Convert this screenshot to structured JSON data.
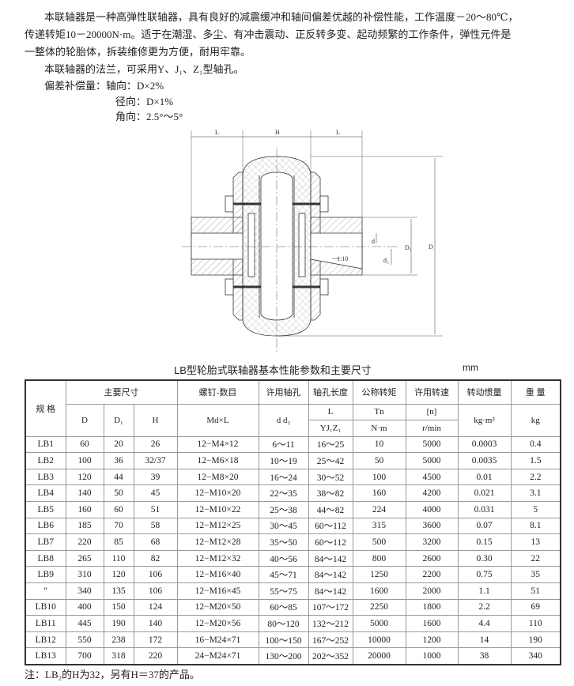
{
  "intro": {
    "line1": "本联轴器是一种高弹性联轴器，具有良好的减震缓冲和轴间偏差优越的补偿性能，工作温度－20～80℃，",
    "line2": "传递转矩10－20000N·m。适于在潮湿、多尘、有冲击震动、正反转多变、起动频繁的工作条件，弹性元件是",
    "line3": "一整体的轮胎体，拆装维修更为方便，耐用牢靠。",
    "line4": "本联轴器的法兰，可采用Y、J₁、Z₁型轴孔。",
    "line5": "偏差补偿量：轴向：D×2%",
    "line6": "径向：D×1%",
    "line7": "角向：2.5°～5°"
  },
  "diagram": {
    "L_left": "L",
    "H": "H",
    "L_right": "L",
    "d": "d",
    "d2": "d₂",
    "D1": "D₁",
    "D": "D",
    "taper": "1:10"
  },
  "table": {
    "title": "LB型轮胎式联轴器基本性能参数和主要尺寸",
    "unit": "mm",
    "headers": {
      "spec": "规  格",
      "main_dims": "主要尺寸",
      "D": "D",
      "D1": "D₁",
      "H": "H",
      "screw": "螺钉-数目",
      "screw_unit": "Md×L",
      "bore": "许用轴孔",
      "bore_unit": "d  d₂",
      "bore_len": "轴孔长度",
      "bore_len_L": "L",
      "bore_len_type": "YJ₁Z₁",
      "torque": "公称转矩",
      "torque_sym": "Tn",
      "torque_unit": "N·m",
      "speed": "许用转速",
      "speed_sym": "[n]",
      "speed_unit": "r/min",
      "inertia": "转动惯量",
      "inertia_unit": "kg·m²",
      "weight": "重  量",
      "weight_unit": "kg"
    },
    "rows": [
      [
        "LB1",
        "60",
        "20",
        "26",
        "12−M4×12",
        "6～11",
        "16～25",
        "10",
        "5000",
        "0.0003",
        "0.4"
      ],
      [
        "LB2",
        "100",
        "36",
        "32/37",
        "12−M6×18",
        "10～19",
        "25～42",
        "50",
        "5000",
        "0.0035",
        "1.5"
      ],
      [
        "LB3",
        "120",
        "44",
        "39",
        "12−M8×20",
        "16～24",
        "30～52",
        "100",
        "4500",
        "0.01",
        "2.2"
      ],
      [
        "LB4",
        "140",
        "50",
        "45",
        "12−M10×20",
        "22～35",
        "38～82",
        "160",
        "4200",
        "0.021",
        "3.1"
      ],
      [
        "LB5",
        "160",
        "60",
        "51",
        "12−M10×22",
        "25～38",
        "44～82",
        "224",
        "4000",
        "0.031",
        "5"
      ],
      [
        "LB6",
        "185",
        "70",
        "58",
        "12−M12×25",
        "30～45",
        "60～112",
        "315",
        "3600",
        "0.07",
        "8.1"
      ],
      [
        "LB7",
        "220",
        "85",
        "68",
        "12−M12×28",
        "35～50",
        "60～112",
        "500",
        "3200",
        "0.15",
        "13"
      ],
      [
        "LB8",
        "265",
        "110",
        "82",
        "12−M12×32",
        "40～56",
        "84～142",
        "800",
        "2600",
        "0.30",
        "22"
      ],
      [
        "LB9",
        "310",
        "120",
        "106",
        "12−M16×40",
        "45～71",
        "84～142",
        "1250",
        "2200",
        "0.75",
        "35"
      ],
      [
        "″",
        "340",
        "135",
        "106",
        "12−M16×45",
        "55～75",
        "84～142",
        "1600",
        "2000",
        "1.1",
        "51"
      ],
      [
        "LB10",
        "400",
        "150",
        "124",
        "12−M20×50",
        "60～85",
        "107～172",
        "2250",
        "1800",
        "2.2",
        "69"
      ],
      [
        "LB11",
        "445",
        "190",
        "140",
        "12−M20×56",
        "80～120",
        "132～212",
        "5000",
        "1600",
        "4.4",
        "110"
      ],
      [
        "LB12",
        "550",
        "238",
        "172",
        "16−M24×71",
        "100～150",
        "167～252",
        "10000",
        "1200",
        "14",
        "190"
      ],
      [
        "LB13",
        "700",
        "318",
        "220",
        "24−M24×71",
        "130～200",
        "202～352",
        "20000",
        "1000",
        "38",
        "340"
      ]
    ]
  },
  "note": "注：LB₂的H为32，另有H＝37的产品。"
}
